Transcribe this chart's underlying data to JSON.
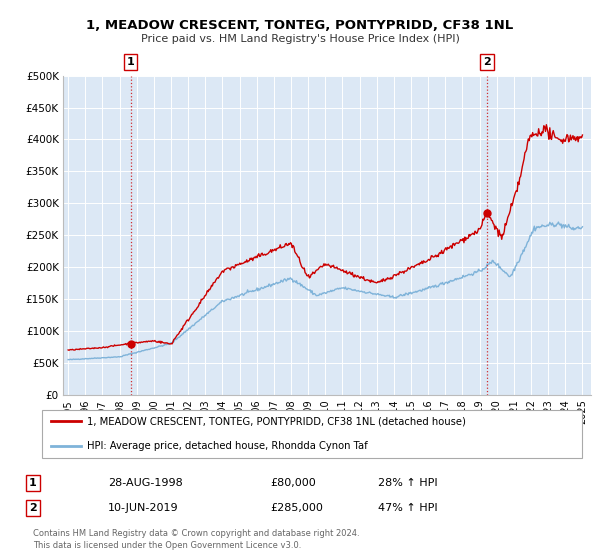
{
  "title": "1, MEADOW CRESCENT, TONTEG, PONTYPRIDD, CF38 1NL",
  "subtitle": "Price paid vs. HM Land Registry's House Price Index (HPI)",
  "legend_line1": "1, MEADOW CRESCENT, TONTEG, PONTYPRIDD, CF38 1NL (detached house)",
  "legend_line2": "HPI: Average price, detached house, Rhondda Cynon Taf",
  "annotation1_label": "1",
  "annotation1_date": "28-AUG-1998",
  "annotation1_price": "£80,000",
  "annotation1_hpi": "28% ↑ HPI",
  "annotation2_label": "2",
  "annotation2_date": "10-JUN-2019",
  "annotation2_price": "£285,000",
  "annotation2_hpi": "47% ↑ HPI",
  "footer1": "Contains HM Land Registry data © Crown copyright and database right 2024.",
  "footer2": "This data is licensed under the Open Government Licence v3.0.",
  "red_color": "#cc0000",
  "blue_color": "#7fb3d9",
  "plot_bg_color": "#dce8f5",
  "grid_color": "#c5d8ea",
  "marker1_x": 1998.65,
  "marker1_y": 80000,
  "marker2_x": 2019.44,
  "marker2_y": 285000,
  "vline1_x": 1998.65,
  "vline2_x": 2019.44,
  "ylim": [
    0,
    500000
  ],
  "xlim_start": 1994.7,
  "xlim_end": 2025.5,
  "yticks": [
    0,
    50000,
    100000,
    150000,
    200000,
    250000,
    300000,
    350000,
    400000,
    450000,
    500000
  ],
  "ytick_labels": [
    "£0",
    "£50K",
    "£100K",
    "£150K",
    "£200K",
    "£250K",
    "£300K",
    "£350K",
    "£400K",
    "£450K",
    "£500K"
  ],
  "xticks": [
    1995,
    1996,
    1997,
    1998,
    1999,
    2000,
    2001,
    2002,
    2003,
    2004,
    2005,
    2006,
    2007,
    2008,
    2009,
    2010,
    2011,
    2012,
    2013,
    2014,
    2015,
    2016,
    2017,
    2018,
    2019,
    2020,
    2021,
    2022,
    2023,
    2024,
    2025
  ]
}
